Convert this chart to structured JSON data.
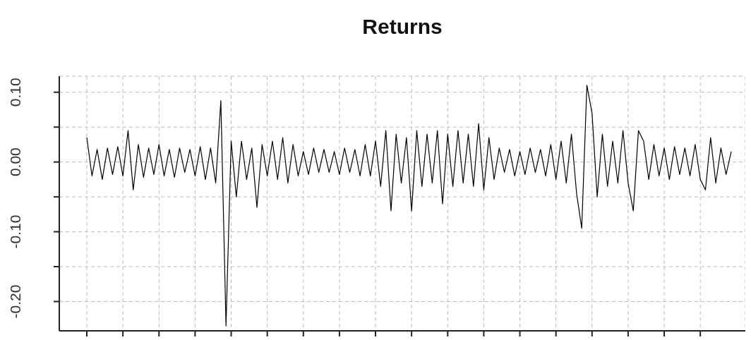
{
  "chart_data": {
    "type": "line",
    "title": "Returns",
    "categories": [
      null,
      null,
      null,
      null,
      null,
      null,
      null,
      null,
      null,
      null,
      null,
      null,
      null,
      null,
      null,
      null,
      null,
      null,
      null,
      null,
      null,
      null,
      null,
      null,
      null,
      null,
      null,
      null,
      null,
      null,
      null,
      null,
      null,
      null,
      null,
      null,
      null,
      null,
      null,
      null,
      null,
      null,
      null,
      null,
      null,
      null,
      null,
      null,
      null,
      null,
      null,
      null,
      null,
      null,
      null,
      null,
      null,
      null,
      null,
      null,
      null,
      null,
      null,
      null,
      null,
      null,
      null,
      null,
      null,
      null,
      null,
      null,
      null,
      null,
      null,
      null,
      null,
      null,
      null,
      null,
      null,
      null,
      null,
      null,
      null,
      null,
      null,
      null,
      null,
      null,
      null,
      null,
      null,
      null,
      null,
      null,
      null,
      null,
      null,
      null,
      null,
      null,
      null,
      null,
      null,
      null,
      null,
      null,
      null,
      null,
      null,
      null,
      null,
      null,
      null,
      null,
      null,
      null,
      null,
      null,
      null,
      null,
      null,
      null,
      null,
      null
    ],
    "series": [
      {
        "color": "#000000",
        "values": [
          0.035,
          -0.02,
          0.018,
          -0.025,
          0.02,
          -0.018,
          0.022,
          -0.02,
          0.045,
          -0.04,
          0.025,
          -0.022,
          0.02,
          -0.018,
          0.025,
          -0.02,
          0.018,
          -0.022,
          0.02,
          -0.015,
          0.018,
          -0.02,
          0.022,
          -0.025,
          0.02,
          -0.03,
          0.088,
          -0.235,
          0.03,
          -0.05,
          0.03,
          -0.025,
          0.02,
          -0.065,
          0.025,
          -0.02,
          0.03,
          -0.025,
          0.035,
          -0.03,
          0.025,
          -0.02,
          0.015,
          -0.018,
          0.02,
          -0.015,
          0.018,
          -0.015,
          0.015,
          -0.018,
          0.02,
          -0.015,
          0.018,
          -0.02,
          0.025,
          -0.02,
          0.03,
          -0.035,
          0.045,
          -0.07,
          0.04,
          -0.03,
          0.035,
          -0.07,
          0.045,
          -0.035,
          0.04,
          -0.03,
          0.045,
          -0.06,
          0.04,
          -0.035,
          0.045,
          -0.03,
          0.04,
          -0.035,
          0.055,
          -0.04,
          0.035,
          -0.025,
          0.02,
          -0.015,
          0.018,
          -0.02,
          0.015,
          -0.018,
          0.02,
          -0.015,
          0.018,
          -0.02,
          0.025,
          -0.025,
          0.03,
          -0.03,
          0.04,
          -0.045,
          -0.095,
          0.11,
          0.07,
          -0.05,
          0.04,
          -0.035,
          0.03,
          -0.03,
          0.045,
          -0.03,
          -0.07,
          0.045,
          0.03,
          -0.025,
          0.025,
          -0.02,
          0.02,
          -0.025,
          0.022,
          -0.018,
          0.02,
          -0.02,
          0.025,
          -0.025,
          -0.04,
          0.035,
          -0.03,
          0.02,
          -0.018,
          0.015
        ]
      }
    ],
    "ylim": [
      -0.242,
      0.123
    ],
    "yticks": [
      {
        "value": 0.1,
        "label": "0.10"
      },
      {
        "value": 0.05,
        "label": null
      },
      {
        "value": 0,
        "label": "0.00"
      },
      {
        "value": -0.05,
        "label": null
      },
      {
        "value": -0.1,
        "label": "-0.10"
      },
      {
        "value": -0.15,
        "label": null
      },
      {
        "value": -0.2,
        "label": "-0.20"
      }
    ],
    "grid": true,
    "line_style": "solid"
  }
}
